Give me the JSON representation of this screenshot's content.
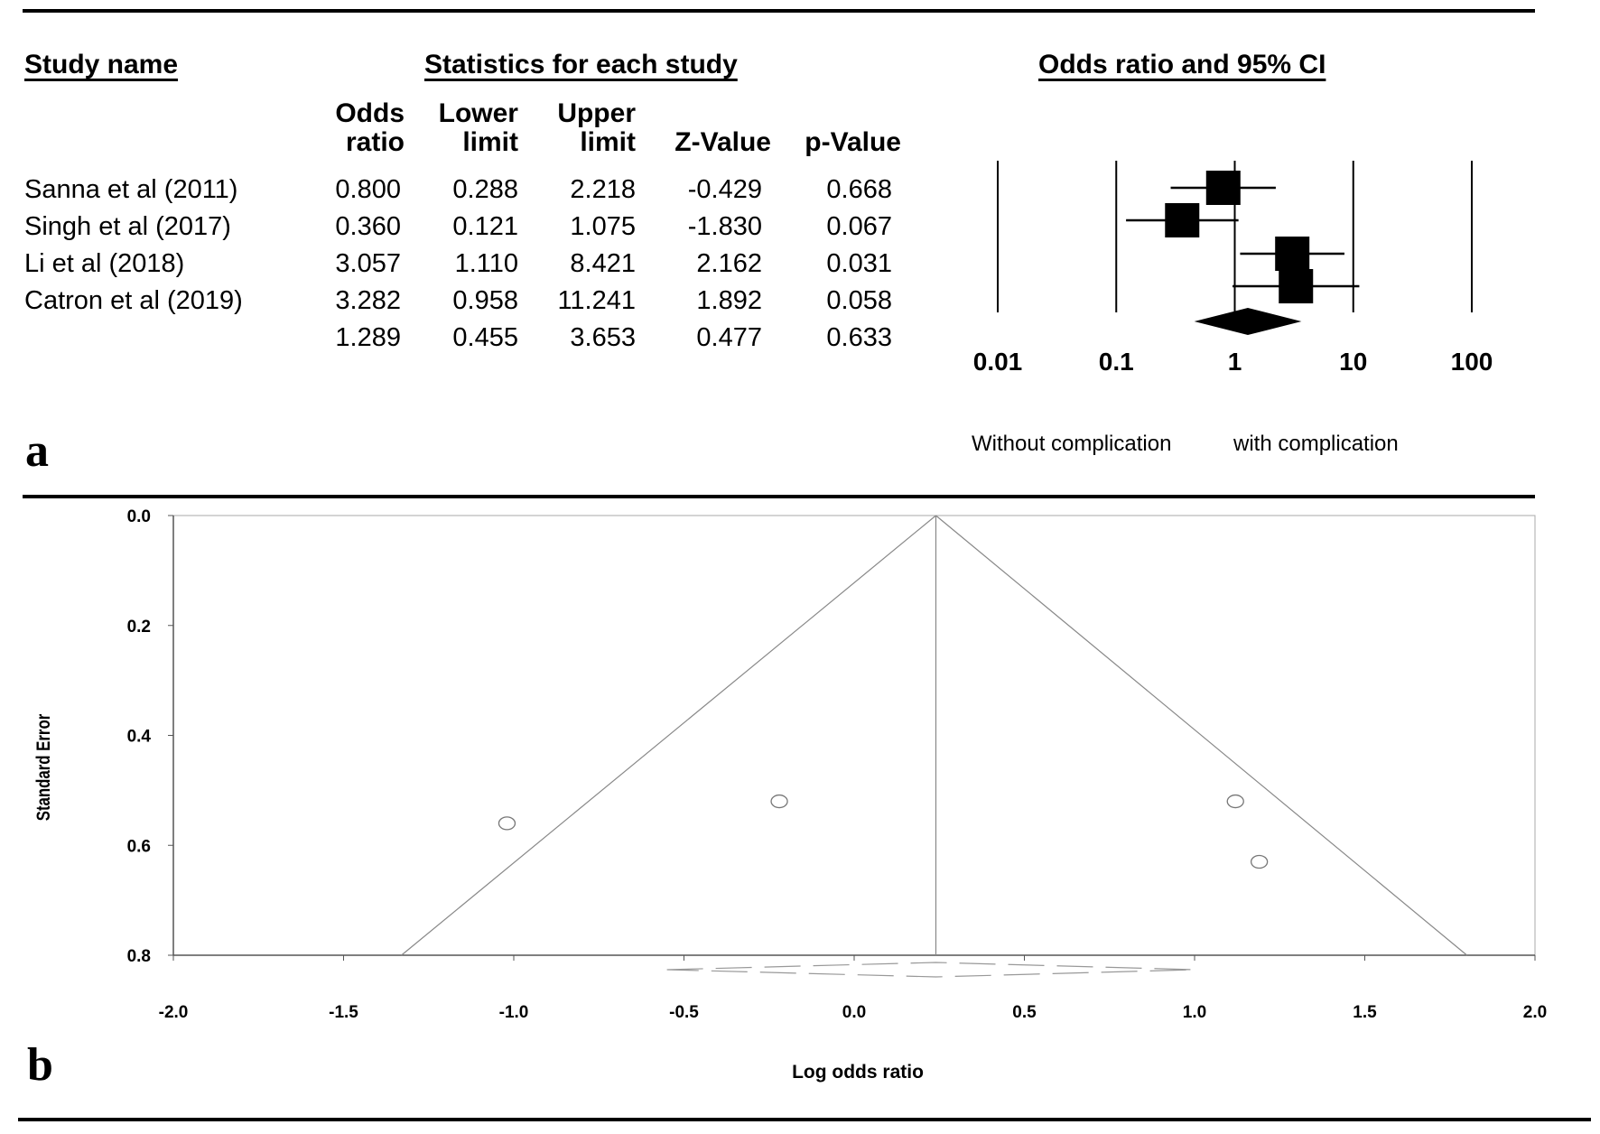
{
  "panel_a": {
    "label": "a",
    "headers": {
      "study": "Study name",
      "statistics": "Statistics for each study",
      "plot": "Odds ratio and 95% CI"
    },
    "columns": [
      [
        "Odds",
        "ratio"
      ],
      [
        "Lower",
        "limit"
      ],
      [
        "Upper",
        "limit"
      ],
      [
        "Z-Value"
      ],
      [
        "p-Value"
      ]
    ],
    "rows": [
      {
        "study": "Sanna et al (2011)",
        "or": "0.800",
        "lower": "0.288",
        "upper": "2.218",
        "z": "-0.429",
        "p": "0.668"
      },
      {
        "study": "Singh et al (2017)",
        "or": "0.360",
        "lower": "0.121",
        "upper": "1.075",
        "z": "-1.830",
        "p": "0.067"
      },
      {
        "study": "Li et al (2018)",
        "or": "3.057",
        "lower": "1.110",
        "upper": "8.421",
        "z": "2.162",
        "p": "0.031"
      },
      {
        "study": "Catron et al (2019)",
        "or": "3.282",
        "lower": "0.958",
        "upper": "11.241",
        "z": "1.892",
        "p": "0.058"
      },
      {
        "study": "",
        "or": "1.289",
        "lower": "0.455",
        "upper": "3.653",
        "z": "0.477",
        "p": "0.633"
      }
    ],
    "footer_left": "Without complication",
    "footer_right": "with complication"
  },
  "panel_b": {
    "label": "b"
  },
  "chart_data": [
    {
      "type": "forest",
      "title": "Odds ratio and 95% CI",
      "scale": "log",
      "x_ticks": [
        "0.01",
        "0.1",
        "1",
        "10",
        "100"
      ],
      "xlim": [
        0.01,
        100
      ],
      "studies": [
        {
          "name": "Sanna et al (2011)",
          "or": 0.8,
          "lower": 0.288,
          "upper": 2.218
        },
        {
          "name": "Singh et al (2017)",
          "or": 0.36,
          "lower": 0.121,
          "upper": 1.075
        },
        {
          "name": "Li et al (2018)",
          "or": 3.057,
          "lower": 1.11,
          "upper": 8.421
        },
        {
          "name": "Catron et al (2019)",
          "or": 3.282,
          "lower": 0.958,
          "upper": 11.241
        }
      ],
      "summary": {
        "or": 1.289,
        "lower": 0.455,
        "upper": 3.653
      },
      "xlabel_left": "Without complication",
      "xlabel_right": "with complication"
    },
    {
      "type": "scatter",
      "subtype": "funnel",
      "xlabel": "Log odds ratio",
      "ylabel": "Standard Error",
      "xlim": [
        -2.0,
        2.0
      ],
      "ylim": [
        0.0,
        0.8
      ],
      "y_inverted": true,
      "x_ticks": [
        "-2.0",
        "-1.5",
        "-1.0",
        "-0.5",
        "0.0",
        "0.5",
        "1.0",
        "1.5",
        "2.0"
      ],
      "y_ticks": [
        "0.0",
        "0.2",
        "0.4",
        "0.6",
        "0.8"
      ],
      "points": [
        {
          "x": -1.02,
          "y": 0.56
        },
        {
          "x": -0.22,
          "y": 0.52
        },
        {
          "x": 1.12,
          "y": 0.52
        },
        {
          "x": 1.19,
          "y": 0.63
        }
      ],
      "center_x": 0.24,
      "funnel_bottom": [
        -1.33,
        1.8
      ]
    }
  ]
}
